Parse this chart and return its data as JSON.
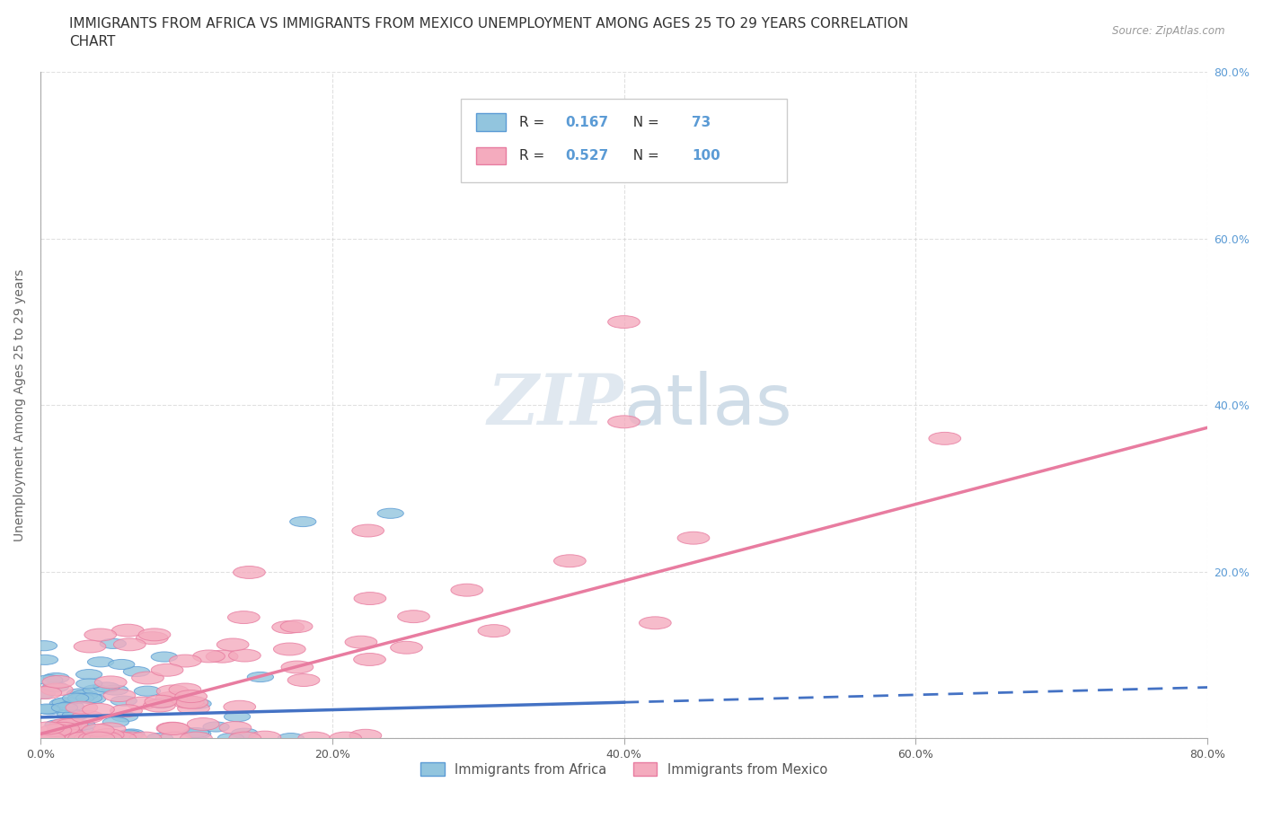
{
  "title_line1": "IMMIGRANTS FROM AFRICA VS IMMIGRANTS FROM MEXICO UNEMPLOYMENT AMONG AGES 25 TO 29 YEARS CORRELATION",
  "title_line2": "CHART",
  "source": "Source: ZipAtlas.com",
  "ylabel": "Unemployment Among Ages 25 to 29 years",
  "xlim": [
    0.0,
    0.8
  ],
  "ylim": [
    0.0,
    0.8
  ],
  "xticks": [
    0.0,
    0.2,
    0.4,
    0.6,
    0.8
  ],
  "yticks": [
    0.0,
    0.2,
    0.4,
    0.6,
    0.8
  ],
  "right_yticks": [
    0.2,
    0.4,
    0.6,
    0.8
  ],
  "africa_color": "#92C5DE",
  "africa_edge_color": "#5B9BD5",
  "mexico_color": "#F4ABBE",
  "mexico_edge_color": "#E87CA0",
  "trendline_africa_color": "#4472C4",
  "trendline_mexico_color": "#E87CA0",
  "right_tick_color": "#5B9BD5",
  "watermark_text": "ZIPatlas",
  "watermark_color": "#E0E8F0",
  "legend_R_africa": "0.167",
  "legend_N_africa": "73",
  "legend_R_mexico": "0.527",
  "legend_N_mexico": "100",
  "legend_label_africa": "Immigrants from Africa",
  "legend_label_mexico": "Immigrants from Mexico",
  "legend_value_color": "#5B9BD5",
  "grid_color": "#CCCCCC",
  "background_color": "#FFFFFF",
  "title_fontsize": 11,
  "axis_fontsize": 10,
  "tick_fontsize": 9,
  "africa_trend_slope": 0.045,
  "africa_trend_intercept": 0.025,
  "mexico_trend_slope": 0.46,
  "mexico_trend_intercept": 0.005
}
